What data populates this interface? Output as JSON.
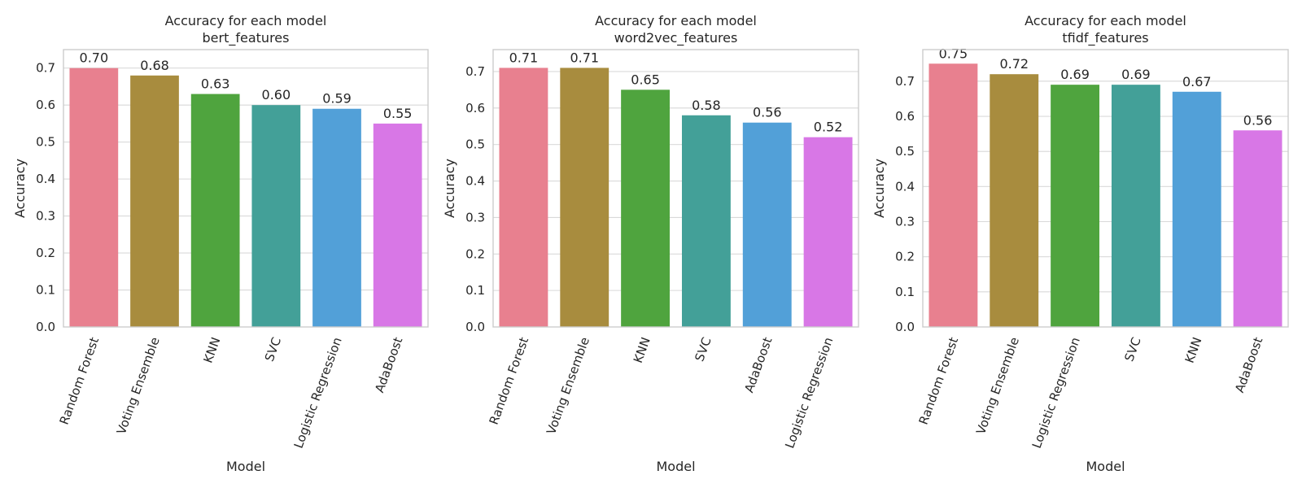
{
  "chart_data": [
    {
      "type": "bar",
      "title": "Accuracy for each model",
      "subtitle": "bert_features",
      "xlabel": "Model",
      "ylabel": "Accuracy",
      "ylim": [
        0,
        0.75
      ],
      "yticks": [
        "0.0",
        "0.1",
        "0.2",
        "0.3",
        "0.4",
        "0.5",
        "0.6",
        "0.7"
      ],
      "grid": true,
      "categories": [
        "Random Forest",
        "Voting Ensemble",
        "KNN",
        "SVC",
        "Logistic Regression",
        "AdaBoost"
      ],
      "values": [
        0.7,
        0.68,
        0.63,
        0.6,
        0.59,
        0.55
      ],
      "labels": [
        "0.70",
        "0.68",
        "0.63",
        "0.60",
        "0.59",
        "0.55"
      ],
      "colors": [
        "#e8808f",
        "#a88c3e",
        "#4fa43e",
        "#43a098",
        "#52a0d8",
        "#d877e6"
      ]
    },
    {
      "type": "bar",
      "title": "Accuracy for each model",
      "subtitle": "word2vec_features",
      "xlabel": "Model",
      "ylabel": "Accuracy",
      "ylim": [
        0,
        0.76
      ],
      "yticks": [
        "0.0",
        "0.1",
        "0.2",
        "0.3",
        "0.4",
        "0.5",
        "0.6",
        "0.7"
      ],
      "grid": true,
      "categories": [
        "Random Forest",
        "Voting Ensemble",
        "KNN",
        "SVC",
        "AdaBoost",
        "Logistic Regression"
      ],
      "values": [
        0.71,
        0.71,
        0.65,
        0.58,
        0.56,
        0.52
      ],
      "labels": [
        "0.71",
        "0.71",
        "0.65",
        "0.58",
        "0.56",
        "0.52"
      ],
      "colors": [
        "#e8808f",
        "#a88c3e",
        "#4fa43e",
        "#43a098",
        "#52a0d8",
        "#d877e6"
      ]
    },
    {
      "type": "bar",
      "title": "Accuracy for each model",
      "subtitle": "tfidf_features",
      "xlabel": "Model",
      "ylabel": "Accuracy",
      "ylim": [
        0,
        0.79
      ],
      "yticks": [
        "0.0",
        "0.1",
        "0.2",
        "0.3",
        "0.4",
        "0.5",
        "0.6",
        "0.7"
      ],
      "grid": true,
      "categories": [
        "Random Forest",
        "Voting Ensemble",
        "Logistic Regression",
        "SVC",
        "KNN",
        "AdaBoost"
      ],
      "values": [
        0.75,
        0.72,
        0.69,
        0.69,
        0.67,
        0.56
      ],
      "labels": [
        "0.75",
        "0.72",
        "0.69",
        "0.69",
        "0.67",
        "0.56"
      ],
      "colors": [
        "#e8808f",
        "#a88c3e",
        "#4fa43e",
        "#43a098",
        "#52a0d8",
        "#d877e6"
      ]
    }
  ]
}
